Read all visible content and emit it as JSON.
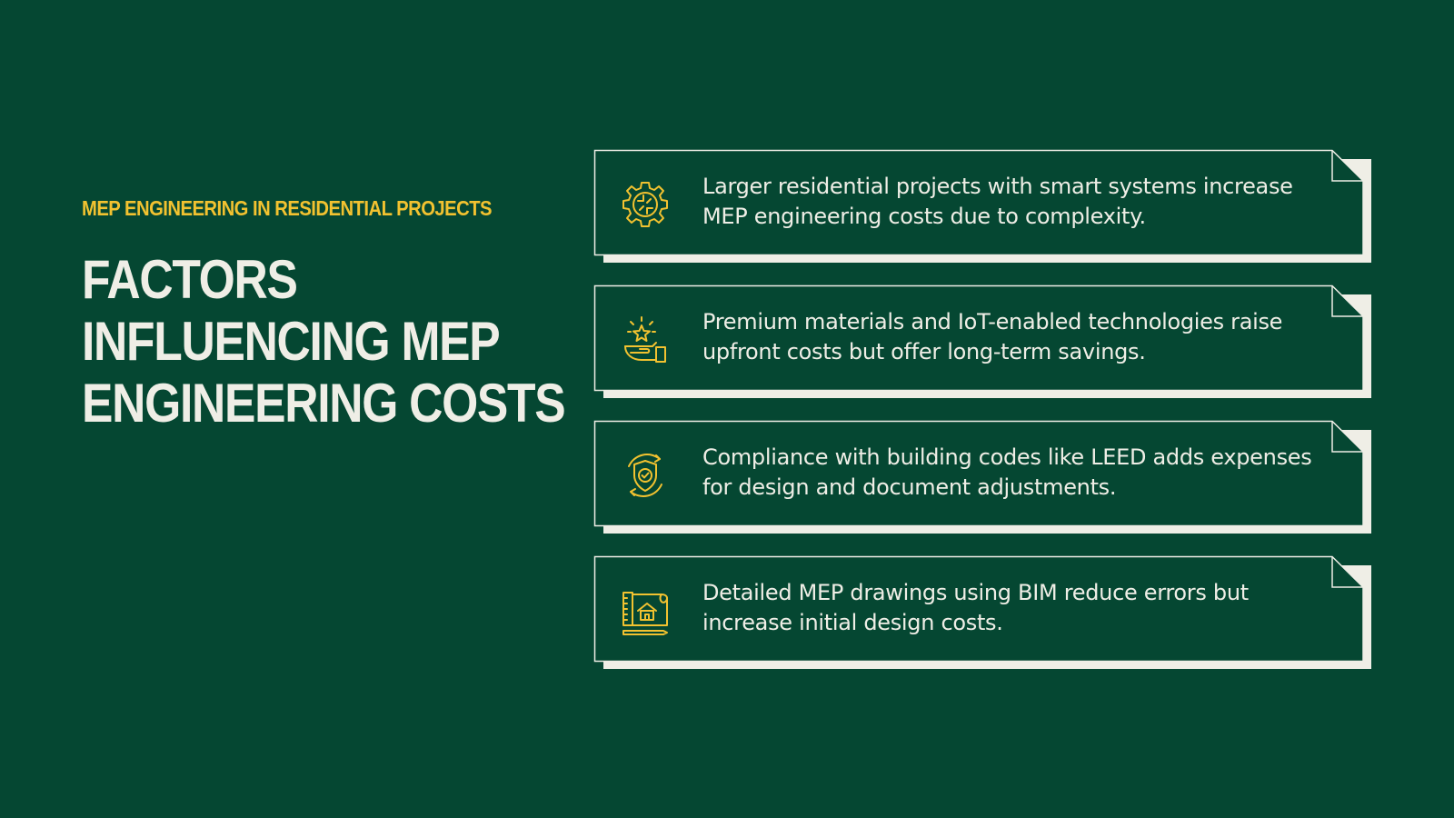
{
  "slide": {
    "subtitle": "MEP ENGINEERING IN RESIDENTIAL PROJECTS",
    "title": "FACTORS INFLUENCING MEP ENGINEERING COSTS"
  },
  "factors": [
    {
      "icon": "gear-circuit-icon",
      "text": "Larger residential projects with smart systems increase MEP engineering costs due to complexity."
    },
    {
      "icon": "hand-star-icon",
      "text": "Premium materials and IoT-enabled technologies raise upfront costs but offer long-term savings."
    },
    {
      "icon": "shield-check-icon",
      "text": "Compliance with building codes like LEED adds expenses for design and document adjustments."
    },
    {
      "icon": "blueprint-icon",
      "text": "Detailed MEP drawings using BIM reduce errors but increase initial design costs."
    }
  ],
  "colors": {
    "background": "#054732",
    "accent": "#f2c230",
    "text": "#efeee6"
  }
}
